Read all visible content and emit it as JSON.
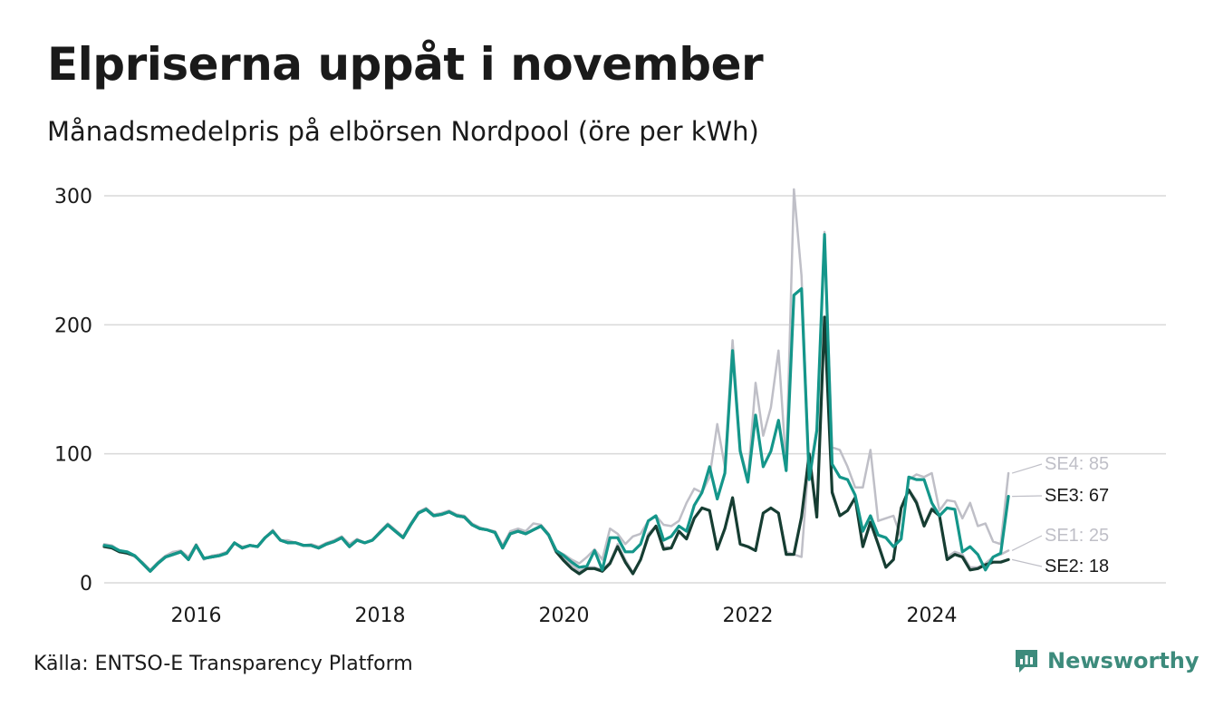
{
  "header": {
    "title": "Elpriserna uppåt i november",
    "subtitle": "Månadsmedelpris på elbörsen Nordpool (öre per kWh)"
  },
  "footer": {
    "source": "Källa: ENTSO-E Transparency Platform",
    "brand": "Newsworthy"
  },
  "colors": {
    "SE1": "#bfbfc7",
    "SE2": "#163d32",
    "SE3": "#14968a",
    "SE4": "#bfbfc7",
    "grid": "#d9d9d9",
    "brand": "#3d8b7c"
  },
  "chart_data": {
    "type": "line",
    "x_start": "2015-01",
    "x_end": "2024-11",
    "x_unit": "month",
    "ylim": [
      0,
      300
    ],
    "y_ticks": [
      0,
      100,
      200,
      300
    ],
    "x_ticks": [
      "2016",
      "2018",
      "2020",
      "2022",
      "2024"
    ],
    "grid": "horizontal",
    "legend": "end-of-line labels at right",
    "end_labels": [
      {
        "series": "SE4",
        "text": "SE4: 85"
      },
      {
        "series": "SE3",
        "text": "SE3: 67"
      },
      {
        "series": "SE1",
        "text": "SE1: 25"
      },
      {
        "series": "SE2",
        "text": "SE2: 18"
      }
    ],
    "series": [
      {
        "name": "SE4",
        "values": [
          30,
          29,
          25,
          24,
          20,
          16,
          10,
          16,
          21,
          24,
          25,
          20,
          30,
          18,
          21,
          22,
          24,
          31,
          28,
          29,
          28,
          35,
          41,
          33,
          33,
          31,
          29,
          30,
          28,
          31,
          33,
          36,
          30,
          34,
          31,
          33,
          40,
          46,
          41,
          36,
          46,
          55,
          58,
          53,
          54,
          56,
          53,
          52,
          46,
          43,
          41,
          40,
          29,
          40,
          42,
          40,
          46,
          45,
          38,
          25,
          22,
          18,
          15,
          20,
          26,
          18,
          42,
          38,
          30,
          36,
          38,
          48,
          52,
          45,
          44,
          48,
          62,
          73,
          70,
          82,
          123,
          90,
          188,
          104,
          80,
          155,
          114,
          136,
          180,
          90,
          305,
          238,
          83,
          120,
          272,
          105,
          103,
          90,
          74,
          74,
          103,
          48,
          50,
          52,
          35,
          80,
          84,
          82,
          85,
          56,
          64,
          63,
          50,
          62,
          44,
          46,
          32,
          30,
          85
        ]
      },
      {
        "name": "SE1",
        "values": [
          29,
          28,
          25,
          24,
          21,
          15,
          9,
          15,
          20,
          22,
          24,
          18,
          29,
          19,
          20,
          21,
          23,
          31,
          27,
          29,
          28,
          35,
          40,
          33,
          31,
          31,
          29,
          29,
          27,
          30,
          32,
          35,
          28,
          33,
          31,
          33,
          39,
          45,
          40,
          35,
          45,
          54,
          57,
          52,
          53,
          55,
          52,
          51,
          45,
          42,
          41,
          39,
          27,
          38,
          40,
          38,
          41,
          44,
          37,
          25,
          19,
          14,
          9,
          12,
          12,
          10,
          16,
          30,
          18,
          8,
          18,
          38,
          44,
          28,
          27,
          40,
          34,
          50,
          58,
          56,
          27,
          42,
          66,
          30,
          28,
          25,
          54,
          58,
          54,
          24,
          22,
          20,
          100,
          52,
          205,
          72,
          52,
          56,
          66,
          29,
          47,
          30,
          12,
          18,
          58,
          72,
          64,
          45,
          58,
          52,
          20,
          24,
          22,
          12,
          12,
          15,
          20,
          22,
          25
        ]
      },
      {
        "name": "SE2",
        "values": [
          28,
          27,
          24,
          23,
          21,
          15,
          9,
          15,
          20,
          22,
          24,
          18,
          29,
          19,
          20,
          21,
          23,
          31,
          27,
          29,
          28,
          35,
          40,
          33,
          31,
          31,
          29,
          29,
          27,
          30,
          32,
          35,
          28,
          33,
          31,
          33,
          39,
          45,
          40,
          35,
          45,
          54,
          57,
          52,
          53,
          55,
          52,
          51,
          45,
          42,
          41,
          39,
          27,
          38,
          40,
          38,
          41,
          44,
          37,
          24,
          17,
          11,
          7,
          11,
          11,
          9,
          15,
          28,
          16,
          7,
          18,
          36,
          44,
          26,
          27,
          40,
          34,
          50,
          58,
          56,
          26,
          42,
          66,
          30,
          28,
          25,
          54,
          58,
          54,
          22,
          22,
          51,
          100,
          51,
          206,
          70,
          52,
          56,
          66,
          28,
          47,
          30,
          12,
          18,
          58,
          72,
          62,
          44,
          57,
          52,
          18,
          22,
          20,
          10,
          11,
          14,
          16,
          16,
          18
        ]
      },
      {
        "name": "SE3",
        "values": [
          29,
          28,
          25,
          24,
          21,
          15,
          9,
          15,
          20,
          22,
          24,
          18,
          29,
          19,
          20,
          21,
          23,
          31,
          27,
          29,
          28,
          35,
          40,
          33,
          31,
          31,
          29,
          29,
          27,
          30,
          32,
          35,
          28,
          33,
          31,
          33,
          39,
          45,
          40,
          35,
          45,
          54,
          57,
          52,
          53,
          55,
          52,
          51,
          45,
          42,
          41,
          39,
          27,
          38,
          40,
          38,
          41,
          44,
          37,
          25,
          21,
          16,
          12,
          13,
          25,
          10,
          35,
          35,
          24,
          24,
          30,
          48,
          52,
          33,
          36,
          44,
          40,
          60,
          70,
          90,
          65,
          85,
          180,
          102,
          78,
          130,
          90,
          102,
          126,
          87,
          223,
          228,
          80,
          118,
          270,
          92,
          82,
          80,
          68,
          40,
          52,
          37,
          35,
          28,
          34,
          82,
          80,
          80,
          62,
          52,
          58,
          57,
          24,
          28,
          22,
          10,
          20,
          23,
          67
        ]
      }
    ]
  }
}
